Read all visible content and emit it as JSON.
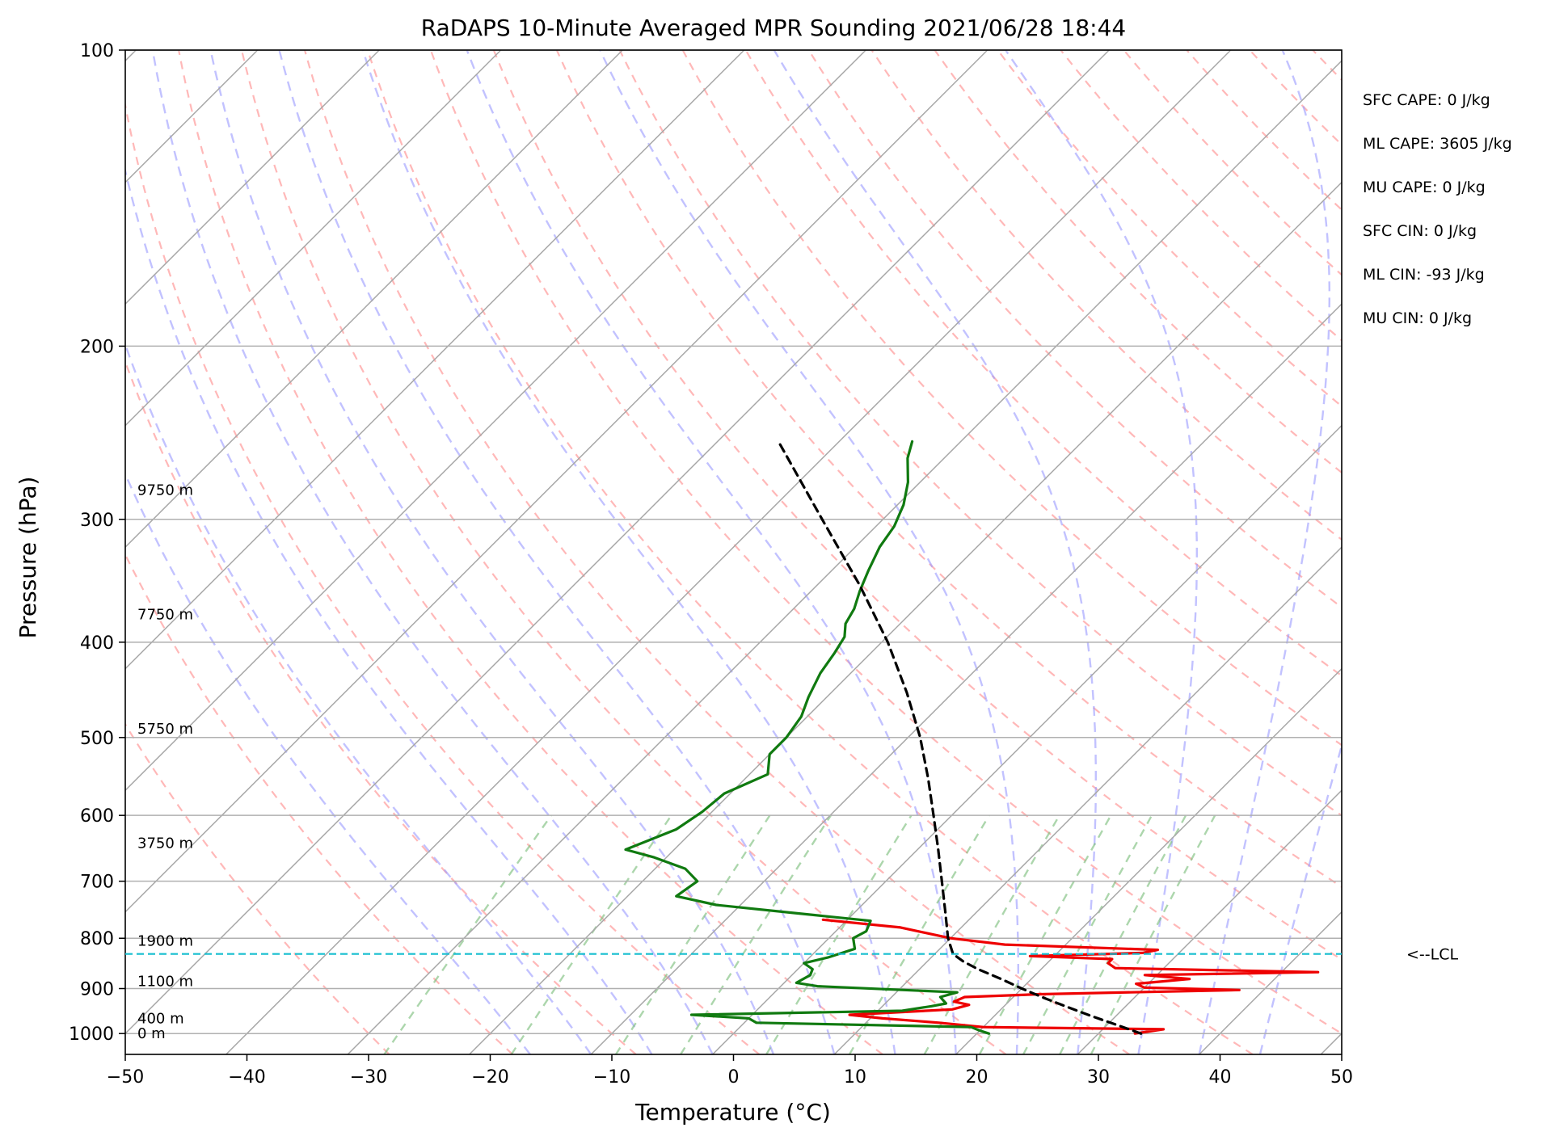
{
  "chart_data": {
    "type": "skew-t",
    "title": "RaDAPS 10-Minute Averaged MPR Sounding 2021/06/28 18:44",
    "xlabel": "Temperature (°C)",
    "ylabel": "Pressure (hPa)",
    "xlim": [
      -50,
      50
    ],
    "ylim": [
      1050,
      100
    ],
    "y_scale": "log",
    "x_ticks": [
      {
        "value": -50,
        "label": "−50"
      },
      {
        "value": -40,
        "label": "−40"
      },
      {
        "value": -30,
        "label": "−30"
      },
      {
        "value": -20,
        "label": "−20"
      },
      {
        "value": -10,
        "label": "−10"
      },
      {
        "value": 0,
        "label": "0"
      },
      {
        "value": 10,
        "label": "10"
      },
      {
        "value": 20,
        "label": "20"
      },
      {
        "value": 30,
        "label": "30"
      },
      {
        "value": 40,
        "label": "40"
      },
      {
        "value": 50,
        "label": "50"
      }
    ],
    "y_ticks": [
      {
        "value": 100,
        "label": "100"
      },
      {
        "value": 200,
        "label": "200"
      },
      {
        "value": 300,
        "label": "300"
      },
      {
        "value": 400,
        "label": "400"
      },
      {
        "value": 500,
        "label": "500"
      },
      {
        "value": 600,
        "label": "600"
      },
      {
        "value": 700,
        "label": "700"
      },
      {
        "value": 800,
        "label": "800"
      },
      {
        "value": 900,
        "label": "900"
      },
      {
        "value": 1000,
        "label": "1000"
      }
    ],
    "grid": true,
    "height_labels": [
      {
        "p": 1000,
        "label": "0 m"
      },
      {
        "p": 965,
        "label": "400 m"
      },
      {
        "p": 885,
        "label": "1100 m"
      },
      {
        "p": 805,
        "label": "1900 m"
      },
      {
        "p": 640,
        "label": "3750 m"
      },
      {
        "p": 490,
        "label": "5750 m"
      },
      {
        "p": 375,
        "label": "7750 m"
      },
      {
        "p": 280,
        "label": "9750 m"
      }
    ],
    "indices": [
      "SFC CAPE: 0 J/kg",
      "ML CAPE: 3605 J/kg",
      "MU CAPE: 0 J/kg",
      "SFC CIN: 0 J/kg",
      "ML CIN: -93 J/kg",
      "MU CIN: 0 J/kg"
    ],
    "lcl": {
      "p": 830,
      "label": "<--LCL",
      "color": "#17becf"
    },
    "series": [
      {
        "key": "temperature",
        "color": "#ee0000",
        "points": [
          [
            1000,
            33.0
          ],
          [
            990,
            35.0
          ],
          [
            985,
            20.0
          ],
          [
            975,
            16.0
          ],
          [
            965,
            11.0
          ],
          [
            957,
            8.0
          ],
          [
            945,
            16.0
          ],
          [
            935,
            17.0
          ],
          [
            928,
            15.5
          ],
          [
            918,
            16.0
          ],
          [
            912,
            22.0
          ],
          [
            903,
            38.0
          ],
          [
            898,
            30.0
          ],
          [
            890,
            29.0
          ],
          [
            880,
            33.0
          ],
          [
            872,
            29.0
          ],
          [
            866,
            43.0
          ],
          [
            858,
            26.0
          ],
          [
            848,
            25.0
          ],
          [
            840,
            25.0
          ],
          [
            834,
            18.0
          ],
          [
            828,
            27.0
          ],
          [
            822,
            28.0
          ],
          [
            812,
            15.0
          ],
          [
            800,
            10.0
          ],
          [
            790,
            7.5
          ],
          [
            780,
            5.0
          ],
          [
            766,
            -2.0
          ]
        ]
      },
      {
        "key": "dewpoint",
        "color": "#107a10",
        "points": [
          [
            1000,
            21.0
          ],
          [
            993,
            20.0
          ],
          [
            985,
            19.0
          ],
          [
            975,
            1.0
          ],
          [
            965,
            0.0
          ],
          [
            957,
            -5.0
          ],
          [
            948,
            12.0
          ],
          [
            938,
            14.0
          ],
          [
            932,
            15.0
          ],
          [
            925,
            14.5
          ],
          [
            918,
            14.0
          ],
          [
            908,
            15.0
          ],
          [
            895,
            3.0
          ],
          [
            888,
            1.0
          ],
          [
            872,
            1.5
          ],
          [
            860,
            1.2
          ],
          [
            848,
            0.0
          ],
          [
            837,
            1.5
          ],
          [
            820,
            3.0
          ],
          [
            800,
            2.0
          ],
          [
            787,
            2.5
          ],
          [
            768,
            2.0
          ],
          [
            754,
            -5.0
          ],
          [
            740,
            -12.0
          ],
          [
            725,
            -16.0
          ],
          [
            700,
            -15.5
          ],
          [
            680,
            -17.5
          ],
          [
            662,
            -21.0
          ],
          [
            650,
            -24.0
          ],
          [
            620,
            -21.5
          ],
          [
            595,
            -20.8
          ],
          [
            570,
            -20.5
          ],
          [
            545,
            -18.5
          ],
          [
            520,
            -20.0
          ],
          [
            500,
            -20.0
          ],
          [
            476,
            -20.5
          ],
          [
            455,
            -21.5
          ],
          [
            430,
            -22.5
          ],
          [
            410,
            -23.0
          ],
          [
            395,
            -23.5
          ],
          [
            383,
            -24.5
          ],
          [
            370,
            -25.0
          ],
          [
            355,
            -26.0
          ],
          [
            338,
            -27.0
          ],
          [
            320,
            -28.0
          ],
          [
            305,
            -28.5
          ],
          [
            290,
            -29.5
          ],
          [
            275,
            -31.0
          ],
          [
            260,
            -33.0
          ],
          [
            250,
            -34.0
          ]
        ]
      },
      {
        "key": "parcel",
        "color": "#000000",
        "points": [
          [
            1000,
            33.5
          ],
          [
            980,
            30.8
          ],
          [
            960,
            28.0
          ],
          [
            940,
            25.3
          ],
          [
            920,
            22.6
          ],
          [
            900,
            20.0
          ],
          [
            880,
            17.5
          ],
          [
            860,
            14.8
          ],
          [
            845,
            13.0
          ],
          [
            830,
            11.5
          ],
          [
            800,
            9.8
          ],
          [
            750,
            7.3
          ],
          [
            700,
            4.6
          ],
          [
            650,
            1.7
          ],
          [
            600,
            -1.5
          ],
          [
            550,
            -5.0
          ],
          [
            500,
            -9.0
          ],
          [
            450,
            -13.8
          ],
          [
            400,
            -19.5
          ],
          [
            350,
            -26.5
          ],
          [
            300,
            -35.0
          ],
          [
            250,
            -45.0
          ]
        ]
      }
    ]
  }
}
